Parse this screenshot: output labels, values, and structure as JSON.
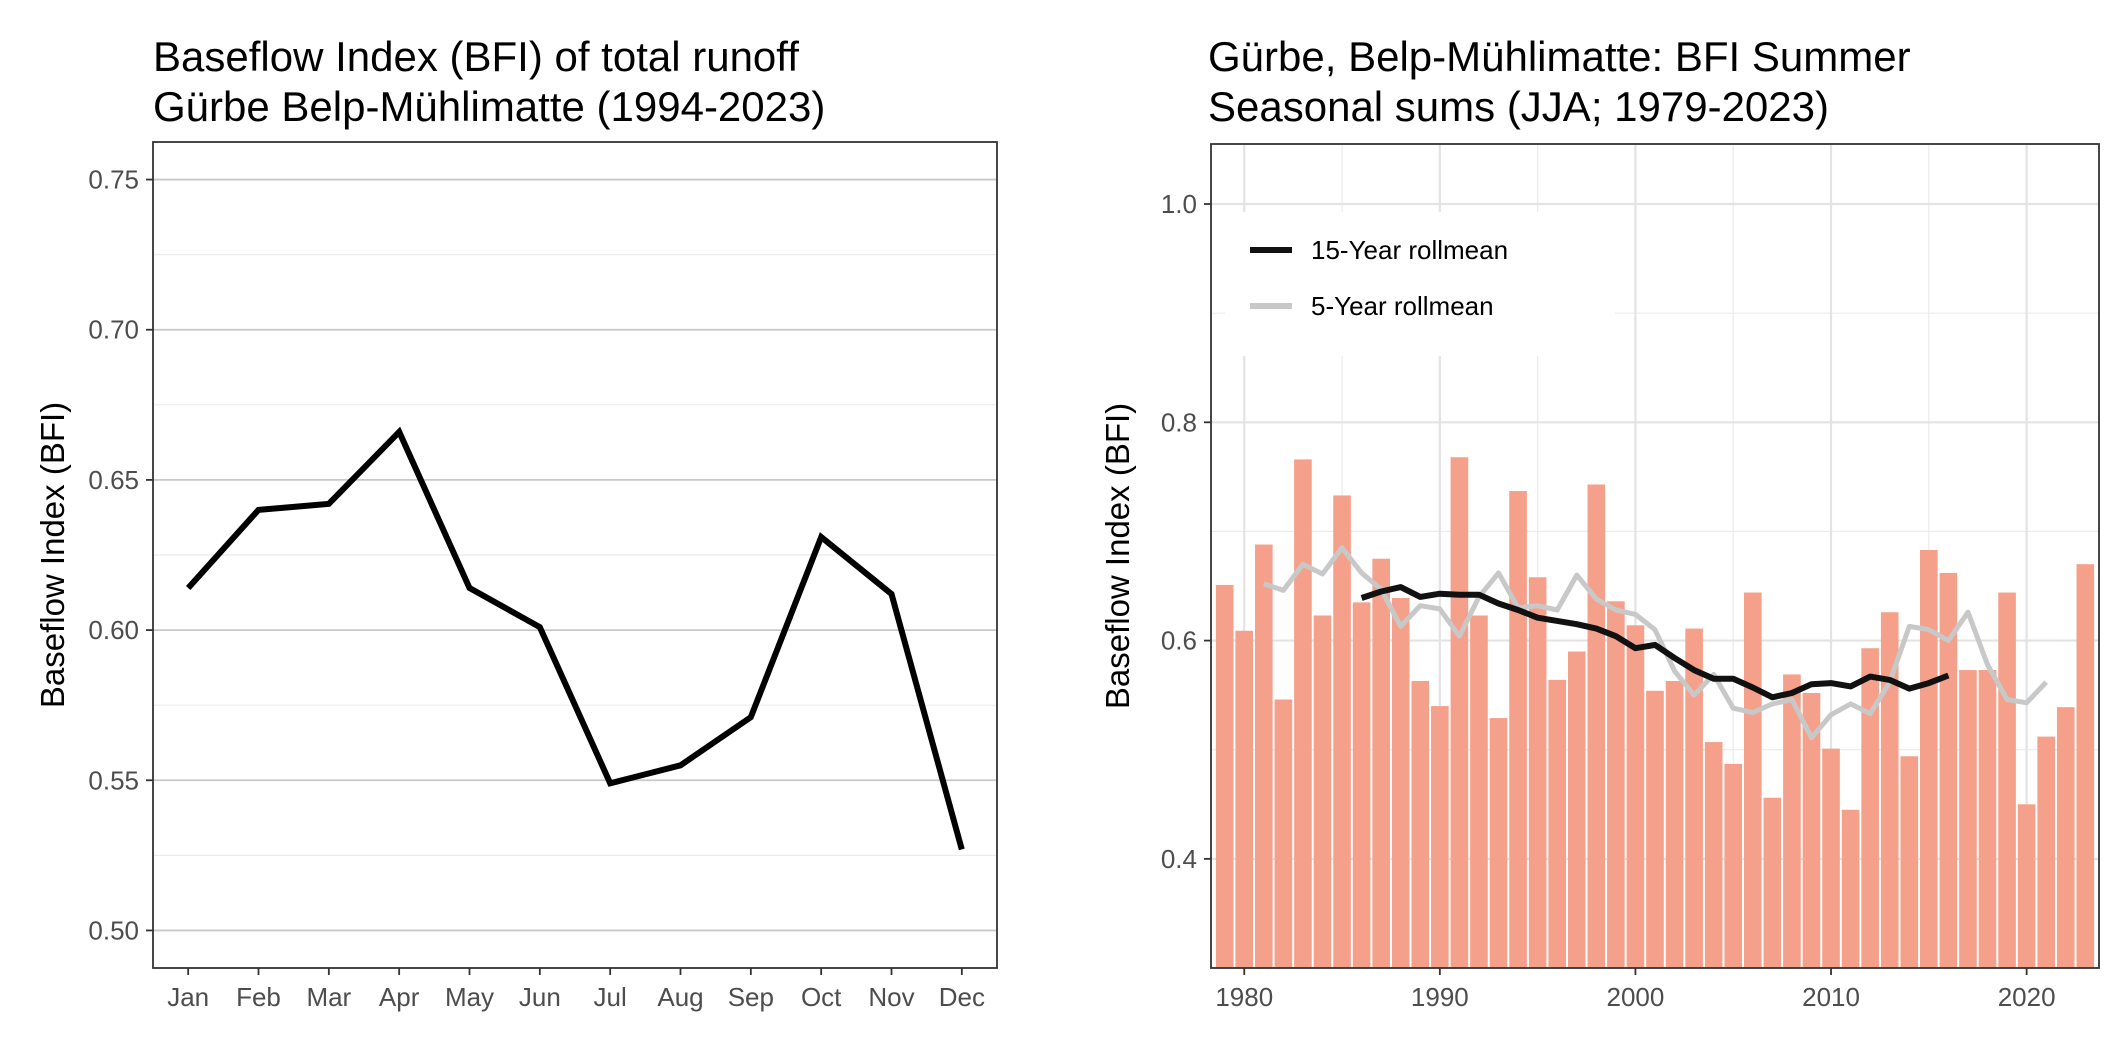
{
  "chart_data": [
    {
      "type": "line",
      "title_lines": [
        "Baseflow Index (BFI) of total runoff",
        "Gürbe Belp-Mühlimatte (1994-2023)"
      ],
      "xlabel": "",
      "ylabel": "Baseflow Index (BFI)",
      "categories": [
        "Jan",
        "Feb",
        "Mar",
        "Apr",
        "May",
        "Jun",
        "Jul",
        "Aug",
        "Sep",
        "Oct",
        "Nov",
        "Dec"
      ],
      "series": [
        {
          "values": [
            0.614,
            0.64,
            0.642,
            0.666,
            0.614,
            0.601,
            0.549,
            0.555,
            0.571,
            0.631,
            0.612,
            0.527
          ]
        }
      ],
      "ylim": [
        0.4875,
        0.7625
      ],
      "yticks": [
        0.5,
        0.55,
        0.6,
        0.65,
        0.7,
        0.75
      ],
      "ytick_labels": [
        "0.50",
        "0.55",
        "0.60",
        "0.65",
        "0.70",
        "0.75"
      ],
      "grid": true,
      "line_color": "#000000"
    },
    {
      "type": "bar",
      "title_lines": [
        "Gürbe, Belp-Mühlimatte: BFI Summer",
        "Seasonal sums (JJA; 1979-2023)"
      ],
      "xlabel": "",
      "ylabel": "Baseflow Index (BFI)",
      "x": [
        1979,
        1980,
        1981,
        1982,
        1983,
        1984,
        1985,
        1986,
        1987,
        1988,
        1989,
        1990,
        1991,
        1992,
        1993,
        1994,
        1995,
        1996,
        1997,
        1998,
        1999,
        2000,
        2001,
        2002,
        2003,
        2004,
        2005,
        2006,
        2007,
        2008,
        2009,
        2010,
        2011,
        2012,
        2013,
        2014,
        2015,
        2016,
        2017,
        2018,
        2019,
        2020,
        2021,
        2022,
        2023
      ],
      "values": [
        0.651,
        0.609,
        0.688,
        0.546,
        0.766,
        0.623,
        0.733,
        0.635,
        0.675,
        0.639,
        0.563,
        0.54,
        0.768,
        0.623,
        0.529,
        0.737,
        0.658,
        0.564,
        0.59,
        0.743,
        0.636,
        0.614,
        0.554,
        0.563,
        0.611,
        0.507,
        0.487,
        0.644,
        0.456,
        0.569,
        0.552,
        0.501,
        0.445,
        0.593,
        0.626,
        0.494,
        0.683,
        0.662,
        0.573,
        0.573,
        0.644,
        0.45,
        0.512,
        0.539,
        0.67
      ],
      "bar_color": "#f4a08a",
      "series": [
        {
          "name": "15-Year rollmean",
          "color": "#111111",
          "x": [
            1986,
            1987,
            1988,
            1989,
            1990,
            1991,
            1992,
            1993,
            1994,
            1995,
            1996,
            1997,
            1998,
            1999,
            2000,
            2001,
            2002,
            2003,
            2004,
            2005,
            2006,
            2007,
            2008,
            2009,
            2010,
            2011,
            2012,
            2013,
            2014,
            2015,
            2016
          ],
          "values": [
            0.639,
            0.645,
            0.649,
            0.64,
            0.643,
            0.642,
            0.642,
            0.634,
            0.628,
            0.621,
            0.618,
            0.615,
            0.611,
            0.604,
            0.593,
            0.596,
            0.584,
            0.573,
            0.565,
            0.565,
            0.557,
            0.548,
            0.552,
            0.56,
            0.561,
            0.558,
            0.567,
            0.564,
            0.556,
            0.561,
            0.568
          ]
        },
        {
          "name": "5-Year rollmean",
          "color": "#c8c8c8",
          "x": [
            1981,
            1982,
            1983,
            1984,
            1985,
            1986,
            1987,
            1988,
            1989,
            1990,
            1991,
            1992,
            1993,
            1994,
            1995,
            1996,
            1997,
            1998,
            1999,
            2000,
            2001,
            2002,
            2003,
            2004,
            2005,
            2006,
            2007,
            2008,
            2009,
            2010,
            2011,
            2012,
            2013,
            2014,
            2015,
            2016,
            2017,
            2018,
            2019,
            2020,
            2021
          ],
          "values": [
            0.652,
            0.646,
            0.67,
            0.661,
            0.685,
            0.662,
            0.647,
            0.613,
            0.632,
            0.629,
            0.604,
            0.64,
            0.662,
            0.63,
            0.632,
            0.628,
            0.66,
            0.638,
            0.628,
            0.624,
            0.61,
            0.572,
            0.55,
            0.569,
            0.538,
            0.534,
            0.542,
            0.546,
            0.511,
            0.532,
            0.542,
            0.533,
            0.562,
            0.613,
            0.61,
            0.6,
            0.626,
            0.578,
            0.546,
            0.543,
            0.562
          ]
        }
      ],
      "xlim": [
        1978.3,
        2023.7
      ],
      "xticks": [
        1980,
        1990,
        2000,
        2010,
        2020
      ],
      "xtick_labels": [
        "1980",
        "1990",
        "2000",
        "2010",
        "2020"
      ],
      "ylim": [
        0.3,
        1.055
      ],
      "yticks": [
        0.4,
        0.6,
        0.8,
        1.0
      ],
      "ytick_labels": [
        "0.4",
        "0.6",
        "0.8",
        "1.0"
      ],
      "grid": true,
      "legend_position": "top-left"
    }
  ]
}
